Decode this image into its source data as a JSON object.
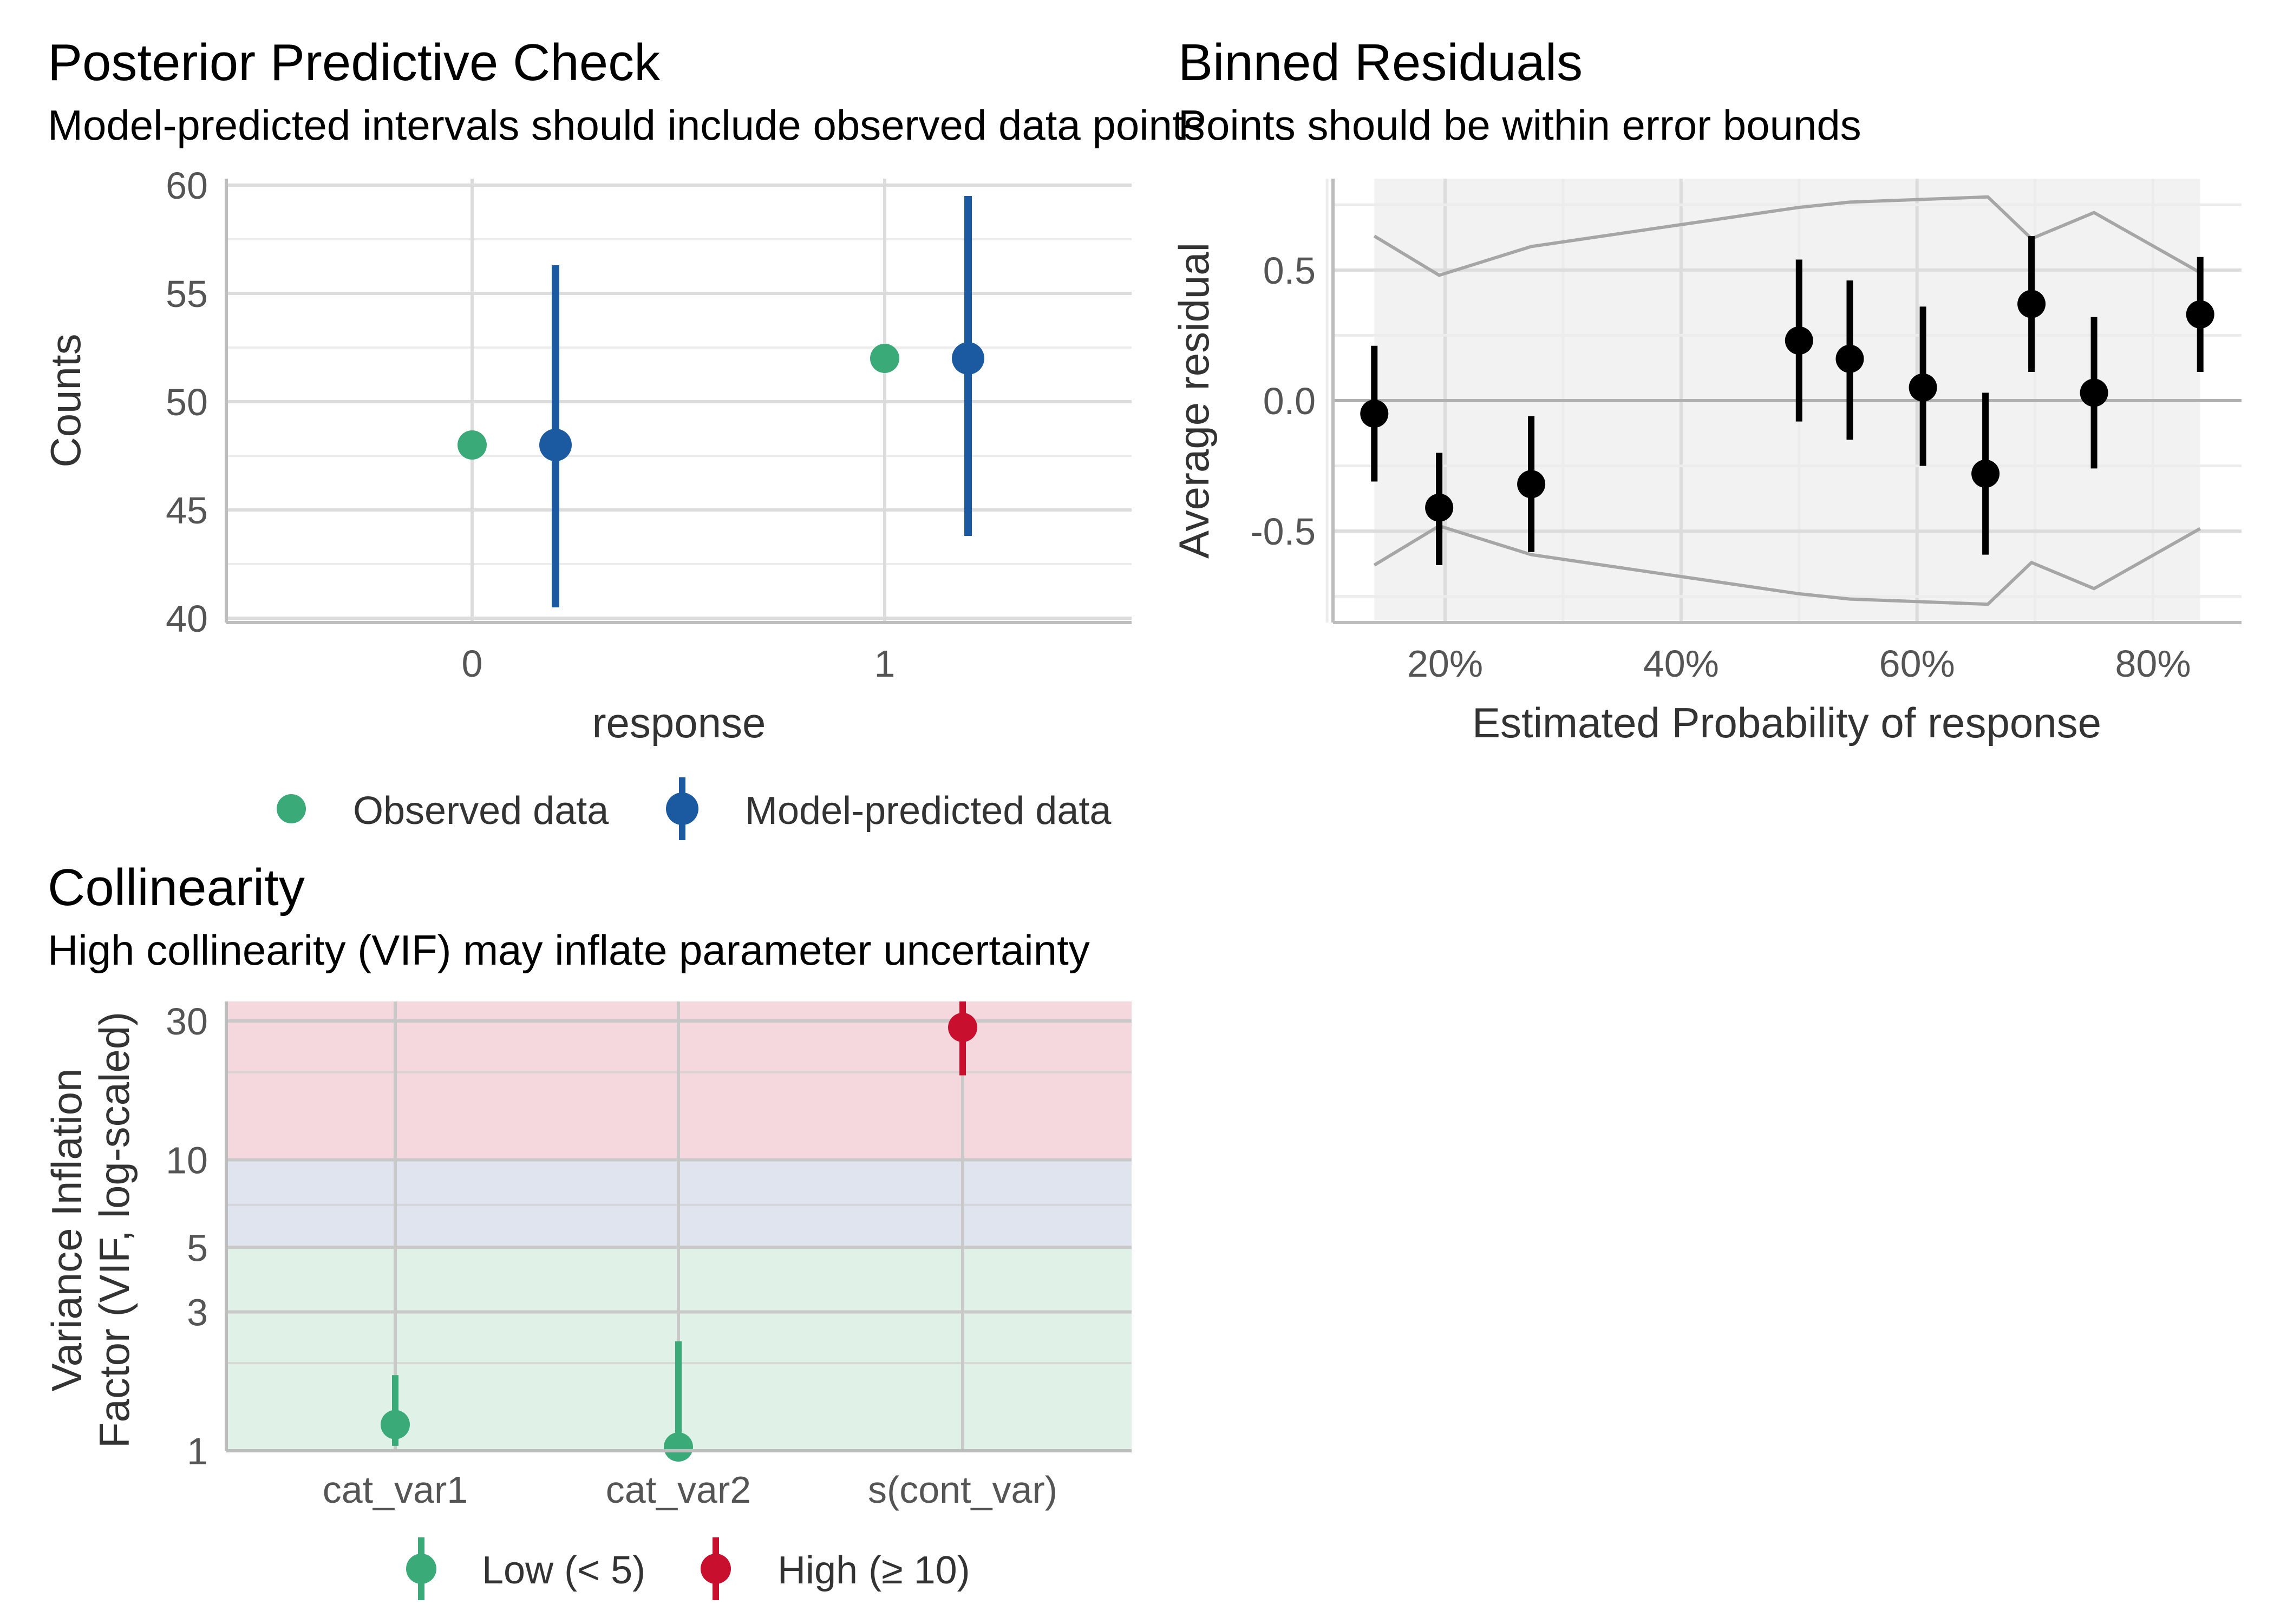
{
  "chart_data": [
    {
      "type": "scatter",
      "title": "Posterior Predictive Check",
      "subtitle": "Model-predicted intervals should include observed data points",
      "xlabel": "response",
      "ylabel": "Counts",
      "x_categories": [
        "0",
        "1"
      ],
      "ylim": [
        39.8,
        60.3
      ],
      "y_ticks": [
        40,
        45,
        50,
        55,
        60
      ],
      "y_tick_labels": [
        "40",
        "45",
        "50",
        "55",
        "60"
      ],
      "grid": true,
      "legend_position": "bottom",
      "series": [
        {
          "name": "Observed data",
          "color": "#3aaa78",
          "points": [
            {
              "x": "0",
              "y": 48
            },
            {
              "x": "1",
              "y": 52
            }
          ]
        },
        {
          "name": "Model-predicted data",
          "color": "#1b5aa0",
          "points": [
            {
              "x": "0",
              "y": 48,
              "low": 40.5,
              "high": 56.3
            },
            {
              "x": "1",
              "y": 52,
              "low": 43.8,
              "high": 59.5
            }
          ]
        }
      ]
    },
    {
      "type": "scatter",
      "title": "Binned Residuals",
      "subtitle": "Points should be within error bounds",
      "xlabel": "Estimated Probability of response",
      "ylabel": "Average residual",
      "xlim": [
        0.105,
        0.875
      ],
      "ylim": [
        -0.85,
        0.85
      ],
      "x_ticks": [
        0.2,
        0.4,
        0.6,
        0.8
      ],
      "x_tick_labels": [
        "20%",
        "40%",
        "60%",
        "80%"
      ],
      "y_ticks": [
        -0.5,
        0,
        0.5
      ],
      "y_tick_labels": [
        "-0.5",
        "0.0",
        "0.5"
      ],
      "grid": true,
      "points": [
        {
          "x": 0.14,
          "y": -0.05,
          "low": -0.31,
          "high": 0.21
        },
        {
          "x": 0.195,
          "y": -0.41,
          "low": -0.63,
          "high": -0.2
        },
        {
          "x": 0.273,
          "y": -0.32,
          "low": -0.58,
          "high": -0.06
        },
        {
          "x": 0.5,
          "y": 0.23,
          "low": -0.08,
          "high": 0.54
        },
        {
          "x": 0.543,
          "y": 0.16,
          "low": -0.15,
          "high": 0.46
        },
        {
          "x": 0.605,
          "y": 0.05,
          "low": -0.25,
          "high": 0.36
        },
        {
          "x": 0.658,
          "y": -0.28,
          "low": -0.59,
          "high": 0.03
        },
        {
          "x": 0.697,
          "y": 0.37,
          "low": 0.11,
          "high": 0.63
        },
        {
          "x": 0.75,
          "y": 0.03,
          "low": -0.26,
          "high": 0.32
        },
        {
          "x": 0.84,
          "y": 0.33,
          "low": 0.11,
          "high": 0.55
        }
      ],
      "error_bounds": {
        "x": [
          0.14,
          0.195,
          0.273,
          0.5,
          0.543,
          0.66,
          0.697,
          0.75,
          0.84
        ],
        "upper": [
          0.63,
          0.48,
          0.59,
          0.74,
          0.76,
          0.78,
          0.62,
          0.72,
          0.49
        ],
        "lower": [
          -0.63,
          -0.48,
          -0.59,
          -0.74,
          -0.76,
          -0.78,
          -0.62,
          -0.72,
          -0.49
        ]
      }
    },
    {
      "type": "scatter",
      "title": "Collinearity",
      "subtitle": "High collinearity (VIF) may inflate parameter uncertainty",
      "xlabel": "",
      "ylabel_lines": [
        "Variance Inflation",
        "Factor (VIF, log-scaled)"
      ],
      "y_scale": "log",
      "ylim": [
        1,
        35
      ],
      "y_ticks": [
        1,
        3,
        5,
        10,
        30
      ],
      "y_tick_labels": [
        "1",
        "3",
        "5",
        "10",
        "30"
      ],
      "x_categories": [
        "cat_var1",
        "cat_var2",
        "s(cont_var)"
      ],
      "grid": true,
      "legend_position": "bottom",
      "regions": [
        {
          "from": 1,
          "to": 5,
          "color": "#e0f1e8"
        },
        {
          "from": 5,
          "to": 10,
          "color": "#dfe4ee"
        },
        {
          "from": 10,
          "to": 35,
          "color": "#f4d8dd"
        }
      ],
      "points": [
        {
          "x": "cat_var1",
          "vif": 1.23,
          "low": 1.04,
          "high": 1.82,
          "group": "Low (< 5)"
        },
        {
          "x": "cat_var2",
          "vif": 1.03,
          "low": 1.0,
          "high": 2.38,
          "group": "Low (< 5)"
        },
        {
          "x": "s(cont_var)",
          "vif": 28.5,
          "low": 19.5,
          "high": 36,
          "group": "High (≥ 10)"
        }
      ],
      "legend": [
        {
          "name": "Low (< 5)",
          "color": "#3aaa78"
        },
        {
          "name": "High (≥ 10)",
          "color": "#c8102e"
        }
      ]
    }
  ]
}
